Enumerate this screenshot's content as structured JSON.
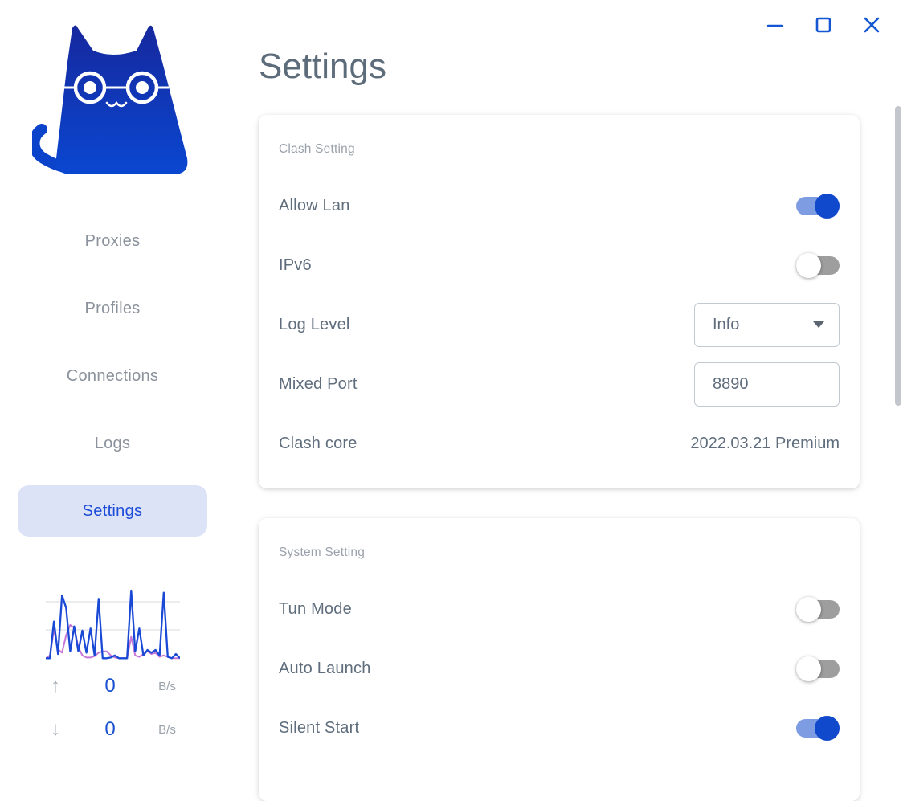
{
  "header": {
    "title": "Settings"
  },
  "window_controls": {
    "minimize": "minimize",
    "maximize": "maximize",
    "close": "close"
  },
  "sidebar": {
    "logo": "clash-cat-logo",
    "nav": [
      {
        "label": "Proxies",
        "active": false
      },
      {
        "label": "Profiles",
        "active": false
      },
      {
        "label": "Connections",
        "active": false
      },
      {
        "label": "Logs",
        "active": false
      },
      {
        "label": "Settings",
        "active": true
      }
    ],
    "traffic": {
      "up": {
        "arrow": "↑",
        "value": "0",
        "unit": "B/s"
      },
      "down": {
        "arrow": "↓",
        "value": "0",
        "unit": "B/s"
      }
    }
  },
  "cards": [
    {
      "section": "Clash Setting",
      "rows": [
        {
          "label": "Allow Lan",
          "type": "toggle",
          "on": true
        },
        {
          "label": "IPv6",
          "type": "toggle",
          "on": false
        },
        {
          "label": "Log Level",
          "type": "select",
          "value": "Info"
        },
        {
          "label": "Mixed Port",
          "type": "input",
          "value": "8890"
        },
        {
          "label": "Clash core",
          "type": "text",
          "value": "2022.03.21 Premium"
        }
      ]
    },
    {
      "section": "System Setting",
      "rows": [
        {
          "label": "Tun Mode",
          "type": "toggle",
          "on": false
        },
        {
          "label": "Auto Launch",
          "type": "toggle",
          "on": false
        },
        {
          "label": "Silent Start",
          "type": "toggle",
          "on": true
        }
      ]
    }
  ],
  "chart_data": {
    "type": "line",
    "title": "traffic-sparkline",
    "grid": true,
    "legend": "none",
    "ylim": [
      0,
      100
    ],
    "series": [
      {
        "name": "upload",
        "color": "#c678d6",
        "values": [
          2,
          6,
          43,
          15,
          10,
          35,
          50,
          46,
          18,
          6,
          3,
          3,
          5,
          10,
          12,
          12,
          6,
          3,
          2,
          2,
          2,
          33,
          6,
          4,
          8,
          12,
          8,
          10,
          4,
          6,
          4,
          2,
          2,
          2
        ]
      },
      {
        "name": "download",
        "color": "#1a49d6",
        "values": [
          2,
          2,
          55,
          8,
          93,
          75,
          12,
          48,
          12,
          42,
          10,
          45,
          6,
          88,
          2,
          2,
          3,
          6,
          2,
          2,
          2,
          100,
          12,
          45,
          6,
          14,
          10,
          14,
          6,
          97,
          4,
          2,
          8,
          2
        ]
      }
    ]
  },
  "colors": {
    "accent": "#1557d2",
    "nav_active_text": "#1b4bd8",
    "nav_active_bg": "#dce3f7",
    "toggle_on_track": "#7e9ce2",
    "toggle_on_thumb": "#1149cc",
    "toggle_off_track": "#9e9e9e",
    "text_primary": "#5f6d7d",
    "text_muted": "#9aa1ab",
    "value_blue": "#1a50d0",
    "logo_gradient_top": "#16289E",
    "logo_gradient_bottom": "#0A47D1",
    "scrollbar": "#c3c7cd"
  }
}
